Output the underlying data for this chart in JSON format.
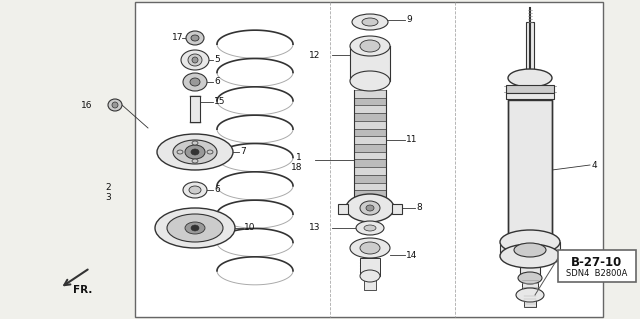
{
  "bg_color": "#f0f0eb",
  "line_color": "#333333",
  "fill_light": "#e8e8e8",
  "fill_mid": "#cccccc",
  "fill_dark": "#999999",
  "ref_code": "B-27-10",
  "sub_code": "SDN4  B2800A",
  "fr_label": "FR.",
  "border_color": "#666666",
  "white": "#ffffff"
}
